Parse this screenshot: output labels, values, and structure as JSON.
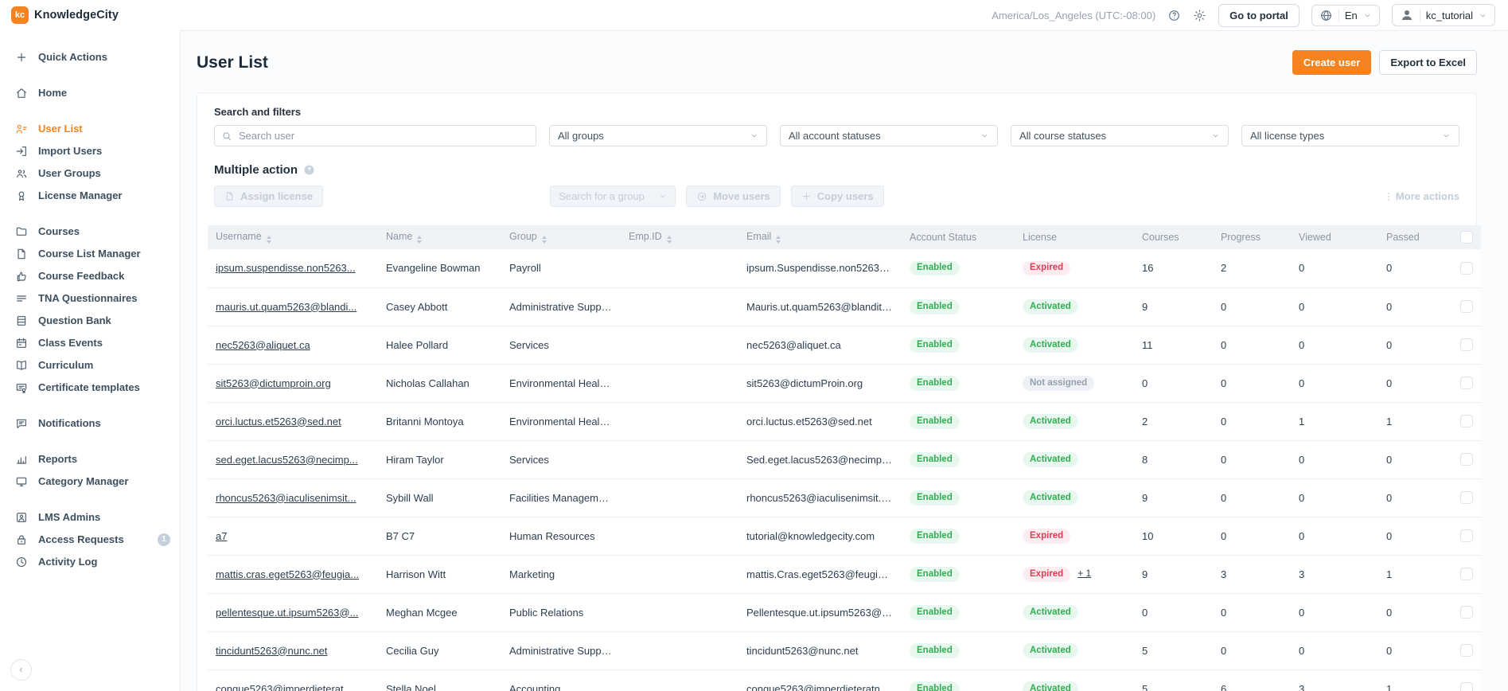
{
  "brand": {
    "logo_text": "kc",
    "name": "KnowledgeCity"
  },
  "topbar": {
    "timezone": "America/Los_Angeles (UTC:-08:00)",
    "go_to_portal": "Go to portal",
    "language": "En",
    "username": "kc_tutorial"
  },
  "sidebar": {
    "groups": [
      {
        "items": [
          {
            "label": "Quick Actions",
            "icon": "plus"
          }
        ]
      },
      {
        "items": [
          {
            "label": "Home",
            "icon": "home"
          }
        ]
      },
      {
        "items": [
          {
            "label": "User List",
            "icon": "user-list",
            "active": true
          },
          {
            "label": "Import Users",
            "icon": "import-users"
          },
          {
            "label": "User Groups",
            "icon": "user-groups"
          },
          {
            "label": "License Manager",
            "icon": "license"
          }
        ]
      },
      {
        "items": [
          {
            "label": "Courses",
            "icon": "folder"
          },
          {
            "label": "Course List Manager",
            "icon": "document"
          },
          {
            "label": "Course Feedback",
            "icon": "thumbs-up"
          },
          {
            "label": "TNA Questionnaires",
            "icon": "lines"
          },
          {
            "label": "Question Bank",
            "icon": "bank"
          },
          {
            "label": "Class Events",
            "icon": "calendar"
          },
          {
            "label": "Curriculum",
            "icon": "book"
          },
          {
            "label": "Certificate templates",
            "icon": "certificate"
          }
        ]
      },
      {
        "items": [
          {
            "label": "Notifications",
            "icon": "notification"
          }
        ]
      },
      {
        "items": [
          {
            "label": "Reports",
            "icon": "chart"
          },
          {
            "label": "Category Manager",
            "icon": "monitor"
          }
        ]
      },
      {
        "items": [
          {
            "label": "LMS Admins",
            "icon": "admin"
          },
          {
            "label": "Access Requests",
            "icon": "lock",
            "badge": "1"
          },
          {
            "label": "Activity Log",
            "icon": "clock"
          }
        ]
      }
    ]
  },
  "page": {
    "title": "User List",
    "create_user": "Create user",
    "export_excel": "Export to Excel"
  },
  "filters": {
    "label": "Search and filters",
    "search_placeholder": "Search user",
    "selects": [
      "All groups",
      "All account statuses",
      "All course statuses",
      "All license types"
    ]
  },
  "multiple_action": {
    "label": "Multiple action",
    "assign_license": "Assign license",
    "group_select_placeholder": "Search for a group",
    "move_users": "Move users",
    "copy_users": "Copy users",
    "more_actions": "More actions"
  },
  "table": {
    "columns": [
      {
        "label": "Username",
        "sortable": true
      },
      {
        "label": "Name",
        "sortable": true
      },
      {
        "label": "Group",
        "sortable": true
      },
      {
        "label": "Emp.ID",
        "sortable": true
      },
      {
        "label": "Email",
        "sortable": true
      },
      {
        "label": "Account Status",
        "sortable": false
      },
      {
        "label": "License",
        "sortable": false
      },
      {
        "label": "Courses",
        "sortable": false
      },
      {
        "label": "Progress",
        "sortable": false
      },
      {
        "label": "Viewed",
        "sortable": false
      },
      {
        "label": "Passed",
        "sortable": false
      }
    ],
    "rows": [
      {
        "username": "ipsum.suspendisse.non5263...",
        "name": "Evangeline Bowman",
        "group": "Payroll",
        "emp_id": "",
        "email": "ipsum.Suspendisse.non5263@mi...",
        "account_status": "Enabled",
        "account_type": "enabled",
        "license": "Expired",
        "license_type": "expired",
        "license_extra": "",
        "courses": "16",
        "progress": "2",
        "viewed": "0",
        "passed": "0"
      },
      {
        "username": "mauris.ut.quam5263@blandi...",
        "name": "Casey Abbott",
        "group": "Administrative Support",
        "emp_id": "",
        "email": "Mauris.ut.quam5263@blanditco...",
        "account_status": "Enabled",
        "account_type": "enabled",
        "license": "Activated",
        "license_type": "activated",
        "license_extra": "",
        "courses": "9",
        "progress": "0",
        "viewed": "0",
        "passed": "0"
      },
      {
        "username": "nec5263@aliquet.ca",
        "name": "Halee Pollard",
        "group": "Services",
        "emp_id": "",
        "email": "nec5263@aliquet.ca",
        "account_status": "Enabled",
        "account_type": "enabled",
        "license": "Activated",
        "license_type": "activated",
        "license_extra": "",
        "courses": "11",
        "progress": "0",
        "viewed": "0",
        "passed": "0"
      },
      {
        "username": "sit5263@dictumproin.org",
        "name": "Nicholas Callahan",
        "group": "Environmental Health ...",
        "emp_id": "",
        "email": "sit5263@dictumProin.org",
        "account_status": "Enabled",
        "account_type": "enabled",
        "license": "Not assigned",
        "license_type": "none",
        "license_extra": "",
        "courses": "0",
        "progress": "0",
        "viewed": "0",
        "passed": "0"
      },
      {
        "username": "orci.luctus.et5263@sed.net",
        "name": "Britanni Montoya",
        "group": "Environmental Health ...",
        "emp_id": "",
        "email": "orci.luctus.et5263@sed.net",
        "account_status": "Enabled",
        "account_type": "enabled",
        "license": "Activated",
        "license_type": "activated",
        "license_extra": "",
        "courses": "2",
        "progress": "0",
        "viewed": "1",
        "passed": "1"
      },
      {
        "username": "sed.eget.lacus5263@necimp...",
        "name": "Hiram Taylor",
        "group": "Services",
        "emp_id": "",
        "email": "Sed.eget.lacus5263@necimperdi...",
        "account_status": "Enabled",
        "account_type": "enabled",
        "license": "Activated",
        "license_type": "activated",
        "license_extra": "",
        "courses": "8",
        "progress": "0",
        "viewed": "0",
        "passed": "0"
      },
      {
        "username": "rhoncus5263@iaculisenimsit...",
        "name": "Sybill Wall",
        "group": "Facilities Management",
        "emp_id": "",
        "email": "rhoncus5263@iaculisenimsit.edu",
        "account_status": "Enabled",
        "account_type": "enabled",
        "license": "Activated",
        "license_type": "activated",
        "license_extra": "",
        "courses": "9",
        "progress": "0",
        "viewed": "0",
        "passed": "0"
      },
      {
        "username": "a7",
        "name": "B7 C7",
        "group": "Human Resources",
        "emp_id": "",
        "email": "tutorial@knowledgecity.com",
        "account_status": "Enabled",
        "account_type": "enabled",
        "license": "Expired",
        "license_type": "expired",
        "license_extra": "",
        "courses": "10",
        "progress": "0",
        "viewed": "0",
        "passed": "0"
      },
      {
        "username": "mattis.cras.eget5263@feugia...",
        "name": "Harrison Witt",
        "group": "Marketing",
        "emp_id": "",
        "email": "mattis.Cras.eget5263@feugiat.net",
        "account_status": "Enabled",
        "account_type": "enabled",
        "license": "Expired",
        "license_type": "expired",
        "license_extra": "+ 1",
        "courses": "9",
        "progress": "3",
        "viewed": "3",
        "passed": "1"
      },
      {
        "username": "pellentesque.ut.ipsum5263@...",
        "name": "Meghan Mcgee",
        "group": "Public Relations",
        "emp_id": "",
        "email": "Pellentesque.ut.ipsum5263@lore...",
        "account_status": "Enabled",
        "account_type": "enabled",
        "license": "Activated",
        "license_type": "activated",
        "license_extra": "",
        "courses": "0",
        "progress": "0",
        "viewed": "0",
        "passed": "0"
      },
      {
        "username": "tincidunt5263@nunc.net",
        "name": "Cecilia Guy",
        "group": "Administrative Support",
        "emp_id": "",
        "email": "tincidunt5263@nunc.net",
        "account_status": "Enabled",
        "account_type": "enabled",
        "license": "Activated",
        "license_type": "activated",
        "license_extra": "",
        "courses": "5",
        "progress": "0",
        "viewed": "0",
        "passed": "0"
      },
      {
        "username": "congue5263@imperdieterat...",
        "name": "Stella Noel",
        "group": "Accounting",
        "emp_id": "",
        "email": "congue5263@imperdieteratnon...",
        "account_status": "Enabled",
        "account_type": "enabled",
        "license": "Activated",
        "license_type": "activated",
        "license_extra": "",
        "courses": "5",
        "progress": "6",
        "viewed": "3",
        "passed": "1"
      }
    ]
  },
  "colors": {
    "accent_orange": "#f5831f",
    "status_green": "#2fae54",
    "status_red": "#e43a52",
    "status_gray": "#94a0ad"
  }
}
